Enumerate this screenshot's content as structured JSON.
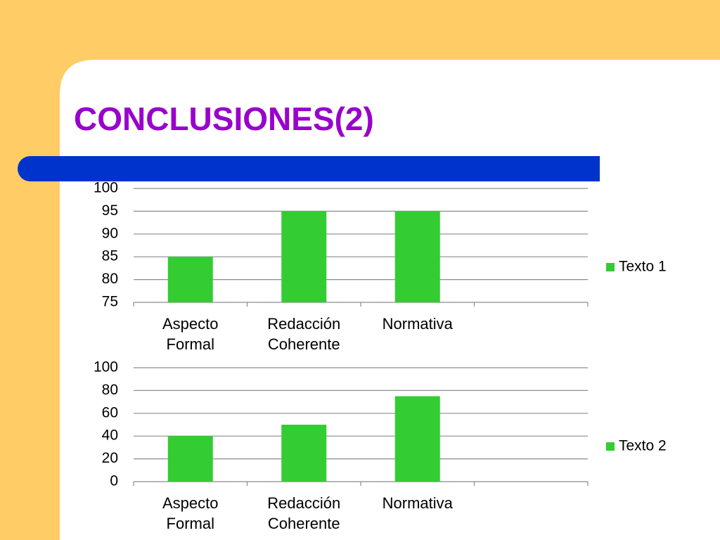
{
  "title": "CONCLUSIONES(2)",
  "chart_data": [
    {
      "type": "bar",
      "categories": [
        "Aspecto Formal",
        "Redacción Coherente",
        "Normativa",
        null
      ],
      "series": [
        {
          "name": "Texto 1",
          "color": "#33cc33",
          "values": [
            85,
            95,
            95,
            null
          ]
        }
      ],
      "ylim": [
        75,
        100
      ],
      "yticks": [
        75,
        80,
        85,
        90,
        95,
        100
      ],
      "grid": true,
      "legend": "right"
    },
    {
      "type": "bar",
      "categories": [
        "Aspecto Formal",
        "Redacción Coherente",
        "Normativa",
        null
      ],
      "series": [
        {
          "name": "Texto 2",
          "color": "#33cc33",
          "values": [
            40,
            50,
            75,
            null
          ]
        }
      ],
      "ylim": [
        0,
        100
      ],
      "yticks": [
        0,
        20,
        40,
        60,
        80,
        100
      ],
      "grid": true,
      "legend": "right"
    }
  ]
}
